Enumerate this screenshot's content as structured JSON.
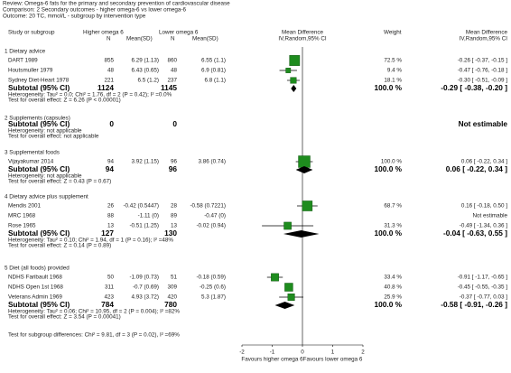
{
  "header": {
    "review": "Review:   Omega-6 fats for the primary and secondary prevention of cardiovascular disease",
    "comparison": "Comparison:   2 Secondary outcomes - higher omega-6 vs lower omega-6",
    "outcome": "Outcome:   20 TC, mmol/L - subgroup by intervention type"
  },
  "columns": {
    "study": "Study or subgroup",
    "higher": "Higher omega 6",
    "higher_n": "N",
    "higher_msd": "Mean(SD)",
    "lower": "Lower omega 6",
    "lower_n": "N",
    "lower_msd": "Mean(SD)",
    "plot": "Mean Difference",
    "plot_sub": "IV,Random,95% CI",
    "weight": "Weight",
    "md": "Mean Difference",
    "md_sub": "IV,Random,95% CI"
  },
  "axis": {
    "xlim": [
      -2,
      2
    ],
    "xticks": [
      -2,
      -1,
      0,
      1,
      2
    ],
    "left_label": "Favours higher omega 6",
    "right_label": "Favours lower omega 6"
  },
  "groups": [
    {
      "title": "1 Dietary advice",
      "studies": [
        {
          "name": "DART 1989",
          "hi_n": 855,
          "hi_msd": "6.29 (1.13)",
          "lo_n": 860,
          "lo_msd": "6.55 (1.1)",
          "weight": {
            "value": 72.5,
            "label": "72.5 %"
          },
          "md": -0.26,
          "ci": [
            -0.37,
            -0.15
          ],
          "md_label": "-0.26 [ -0.37, -0.15 ]"
        },
        {
          "name": "Houtsmuller 1979",
          "hi_n": 48,
          "hi_msd": "6.43 (0.65)",
          "lo_n": 48,
          "lo_msd": "6.9 (0.81)",
          "weight": {
            "value": 9.4,
            "label": "9.4 %"
          },
          "md": -0.47,
          "ci": [
            -0.76,
            -0.18
          ],
          "md_label": "-0.47 [ -0.76, -0.18 ]"
        },
        {
          "name": "Sydney Diet-Heart 1978",
          "hi_n": 221,
          "hi_msd": "6.5 (1.2)",
          "lo_n": 237,
          "lo_msd": "6.8 (1.1)",
          "weight": {
            "value": 18.1,
            "label": "18.1 %"
          },
          "md": -0.3,
          "ci": [
            -0.51,
            -0.09
          ],
          "md_label": "-0.30 [ -0.51, -0.09 ]"
        }
      ],
      "subtotal": {
        "label": "Subtotal (95% CI)",
        "hi_n": 1124,
        "lo_n": 1145,
        "weight": {
          "value": 100.0,
          "label": "100.0 %"
        },
        "md": -0.29,
        "ci": [
          -0.38,
          -0.2
        ],
        "md_label": "-0.29 [ -0.38, -0.20 ]"
      },
      "heterogeneity": "Heterogeneity: Tau² = 0.0; Chi² = 1.76, df = 2 (P = 0.42); I² =0.0%",
      "overall_effect": "Test for overall effect: Z = 6.26 (P < 0.00001)"
    },
    {
      "title": "2 Supplements (capsules)",
      "studies": [],
      "subtotal": {
        "label": "Subtotal (95% CI)",
        "hi_n": 0,
        "lo_n": 0,
        "md_label": "Not estimable"
      },
      "heterogeneity": "Heterogeneity: not applicable",
      "overall_effect": "Test for overall effect: not applicable"
    },
    {
      "title": "3 Supplemental foods",
      "studies": [
        {
          "name": "Vijayakumar 2014",
          "hi_n": 94,
          "hi_msd": "3.92 (1.15)",
          "lo_n": 96,
          "lo_msd": "3.86 (0.74)",
          "weight": {
            "value": 100.0,
            "label": "100.0 %"
          },
          "md": 0.06,
          "ci": [
            -0.22,
            0.34
          ],
          "md_label": "0.06 [ -0.22, 0.34 ]"
        }
      ],
      "subtotal": {
        "label": "Subtotal (95% CI)",
        "hi_n": 94,
        "lo_n": 96,
        "weight": {
          "value": 100.0,
          "label": "100.0 %"
        },
        "md": 0.06,
        "ci": [
          -0.22,
          0.34
        ],
        "md_label": "0.06 [ -0.22, 0.34 ]"
      },
      "heterogeneity": "Heterogeneity: not applicable",
      "overall_effect": "Test for overall effect: Z = 0.43 (P = 0.67)"
    },
    {
      "title": "4 Dietary advice plus supplement",
      "studies": [
        {
          "name": "Mendis 2001",
          "hi_n": 26,
          "hi_msd": "-0.42 (0.5447)",
          "lo_n": 28,
          "lo_msd": "-0.58 (0.7221)",
          "weight": {
            "value": 68.7,
            "label": "68.7 %"
          },
          "md": 0.16,
          "ci": [
            -0.18,
            0.5
          ],
          "md_label": "0.16 [ -0.18, 0.50 ]"
        },
        {
          "name": "MRC 1968",
          "hi_n": 88,
          "hi_msd": "-1.11 (0)",
          "lo_n": 89,
          "lo_msd": "-0.47 (0)",
          "md_label": "Not estimable"
        },
        {
          "name": "Rose 1965",
          "hi_n": 13,
          "hi_msd": "-0.51 (1.25)",
          "lo_n": 13,
          "lo_msd": "-0.02 (0.94)",
          "weight": {
            "value": 31.3,
            "label": "31.3 %"
          },
          "md": -0.49,
          "ci": [
            -1.34,
            0.36
          ],
          "md_label": "-0.49 [ -1.34, 0.36 ]"
        }
      ],
      "subtotal": {
        "label": "Subtotal (95% CI)",
        "hi_n": 127,
        "lo_n": 130,
        "weight": {
          "value": 100.0,
          "label": "100.0 %"
        },
        "md": -0.04,
        "ci": [
          -0.63,
          0.55
        ],
        "md_label": "-0.04 [ -0.63, 0.55 ]"
      },
      "heterogeneity": "Heterogeneity: Tau² = 0.10; Chi² = 1.94, df = 1 (P = 0.16); I² =48%",
      "overall_effect": "Test for overall effect: Z = 0.14 (P = 0.89)"
    },
    {
      "title": "5 Diet (all foods) provided",
      "studies": [
        {
          "name": "NDHS Faribault 1968",
          "hi_n": 50,
          "hi_msd": "-1.09 (0.73)",
          "lo_n": 51,
          "lo_msd": "-0.18 (0.59)",
          "weight": {
            "value": 33.4,
            "label": "33.4 %"
          },
          "md": -0.91,
          "ci": [
            -1.17,
            -0.65
          ],
          "md_label": "-0.91 [ -1.17, -0.65 ]"
        },
        {
          "name": "NDHS Open 1st 1968",
          "hi_n": 311,
          "hi_msd": "-0.7 (0.69)",
          "lo_n": 309,
          "lo_msd": "-0.25 (0.6)",
          "weight": {
            "value": 40.8,
            "label": "40.8 %"
          },
          "md": -0.45,
          "ci": [
            -0.55,
            -0.35
          ],
          "md_label": "-0.45 [ -0.55, -0.35 ]"
        },
        {
          "name": "Veterans Admin 1969",
          "hi_n": 423,
          "hi_msd": "4.93 (3.72)",
          "lo_n": 420,
          "lo_msd": "5.3 (1.87)",
          "weight": {
            "value": 25.9,
            "label": "25.9 %"
          },
          "md": -0.37,
          "ci": [
            -0.77,
            0.03
          ],
          "md_label": "-0.37 [ -0.77, 0.03 ]"
        }
      ],
      "subtotal": {
        "label": "Subtotal (95% CI)",
        "hi_n": 784,
        "lo_n": 780,
        "weight": {
          "value": 100.0,
          "label": "100.0 %"
        },
        "md": -0.58,
        "ci": [
          -0.91,
          -0.26
        ],
        "md_label": "-0.58 [ -0.91, -0.26 ]"
      },
      "heterogeneity": "Heterogeneity: Tau² = 0.06; Chi² = 10.95, df = 2 (P = 0.004); I² =82%",
      "overall_effect": "Test for overall effect: Z = 3.54 (P = 0.00041)"
    }
  ],
  "footer": "Test for subgroup differences: Chi² = 9.81, df = 3 (P = 0.02), I² =69%"
}
